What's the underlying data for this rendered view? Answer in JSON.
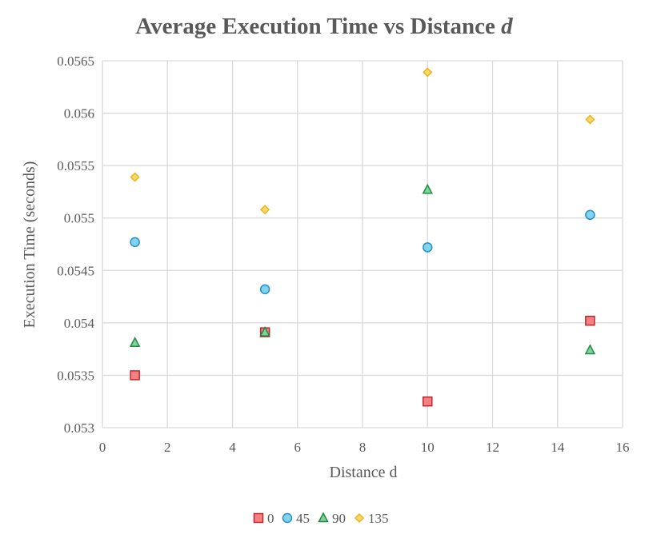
{
  "chart_data": {
    "type": "scatter",
    "title": "Average Execution Time vs Distance ",
    "title_emphasis": "d",
    "xlabel": "Distance d",
    "ylabel": "Execution Time (seconds)",
    "xlim": [
      0,
      16
    ],
    "ylim": [
      0.053,
      0.0565
    ],
    "xticks": [
      0,
      2,
      4,
      6,
      8,
      10,
      12,
      14,
      16
    ],
    "yticks": [
      "0.053",
      "0.0535",
      "0.054",
      "0.0545",
      "0.055",
      "0.0555",
      "0.056",
      "0.0565"
    ],
    "grid": true,
    "legend_position": "bottom",
    "series": [
      {
        "name": "0",
        "marker": "square",
        "fill": "#f4817f",
        "stroke": "#c0272d",
        "points": [
          [
            1,
            0.0535
          ],
          [
            5,
            0.05391
          ],
          [
            10,
            0.05325
          ],
          [
            15,
            0.05402
          ]
        ]
      },
      {
        "name": "45",
        "marker": "circle",
        "fill": "#7fd5ef",
        "stroke": "#2a8fc2",
        "points": [
          [
            1,
            0.05477
          ],
          [
            5,
            0.05432
          ],
          [
            10,
            0.05472
          ],
          [
            15,
            0.05503
          ]
        ]
      },
      {
        "name": "90",
        "marker": "triangle",
        "fill": "#7ed39a",
        "stroke": "#1f8a44",
        "points": [
          [
            1,
            0.05381
          ],
          [
            5,
            0.05391
          ],
          [
            10,
            0.05527
          ],
          [
            15,
            0.05374
          ]
        ]
      },
      {
        "name": "135",
        "marker": "diamond",
        "fill": "#fcd86a",
        "stroke": "#e7b51a",
        "points": [
          [
            1,
            0.05539
          ],
          [
            5,
            0.05508
          ],
          [
            10,
            0.05639
          ],
          [
            15,
            0.05594
          ]
        ]
      }
    ]
  }
}
